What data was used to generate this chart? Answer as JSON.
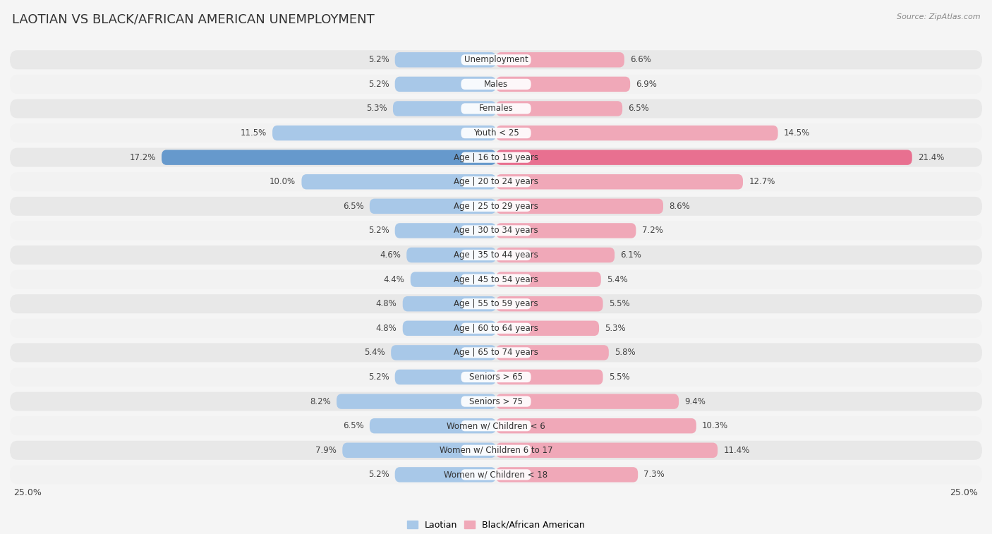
{
  "title": "LAOTIAN VS BLACK/AFRICAN AMERICAN UNEMPLOYMENT",
  "source": "Source: ZipAtlas.com",
  "categories": [
    "Unemployment",
    "Males",
    "Females",
    "Youth < 25",
    "Age | 16 to 19 years",
    "Age | 20 to 24 years",
    "Age | 25 to 29 years",
    "Age | 30 to 34 years",
    "Age | 35 to 44 years",
    "Age | 45 to 54 years",
    "Age | 55 to 59 years",
    "Age | 60 to 64 years",
    "Age | 65 to 74 years",
    "Seniors > 65",
    "Seniors > 75",
    "Women w/ Children < 6",
    "Women w/ Children 6 to 17",
    "Women w/ Children < 18"
  ],
  "laotian": [
    5.2,
    5.2,
    5.3,
    11.5,
    17.2,
    10.0,
    6.5,
    5.2,
    4.6,
    4.4,
    4.8,
    4.8,
    5.4,
    5.2,
    8.2,
    6.5,
    7.9,
    5.2
  ],
  "black": [
    6.6,
    6.9,
    6.5,
    14.5,
    21.4,
    12.7,
    8.6,
    7.2,
    6.1,
    5.4,
    5.5,
    5.3,
    5.8,
    5.5,
    9.4,
    10.3,
    11.4,
    7.3
  ],
  "laotian_color": "#a8c8e8",
  "black_color": "#f0a8b8",
  "laotian_highlight": "#6699cc",
  "black_highlight": "#e87090",
  "row_color_odd": "#f0f0f0",
  "row_color_even": "#fafafa",
  "background_color": "#f5f5f5",
  "max_val": 25.0,
  "legend_laotian": "Laotian",
  "legend_black": "Black/African American",
  "title_fontsize": 13,
  "source_fontsize": 8,
  "value_fontsize": 8.5,
  "category_fontsize": 8.5
}
